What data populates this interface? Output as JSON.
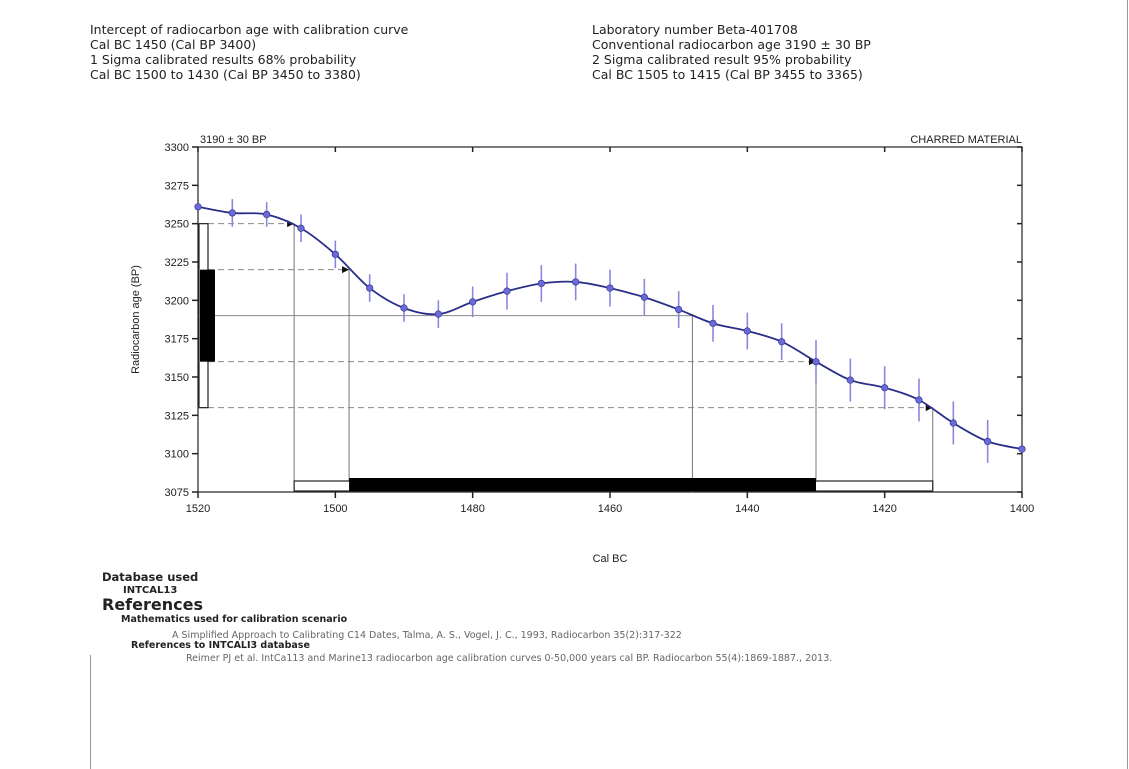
{
  "header": {
    "left": [
      "Intercept of radiocarbon age with calibration curve",
      "Cal BC 1450 (Cal BP 3400)",
      "1 Sigma calibrated results 68% probability",
      "Cal BC 1500 to 1430 (Cal BP 3450 to 3380)"
    ],
    "right": [
      "Laboratory number Beta-401708",
      "Conventional radiocarbon age 3190 ± 30 BP",
      "2 Sigma calibrated result 95% probability",
      "Cal BC 1505 to 1415 (Cal BP 3455 to 3365)"
    ]
  },
  "chart_data": {
    "type": "line",
    "top_left_label": "3190 ± 30 BP",
    "top_right_label": "CHARRED MATERIAL",
    "xlabel": "Cal BC",
    "ylabel": "Radiocarbon age (BP)",
    "xlim": [
      1520,
      1400
    ],
    "ylim": [
      3075,
      3300
    ],
    "xticks": [
      1520,
      1500,
      1480,
      1460,
      1440,
      1420,
      1400
    ],
    "yticks": [
      3075,
      3100,
      3125,
      3150,
      3175,
      3200,
      3225,
      3250,
      3275,
      3300
    ],
    "conventional_age": 3190,
    "sigma1_age_range": [
      3160,
      3220
    ],
    "sigma2_age_range": [
      3130,
      3250
    ],
    "sigma1_cal_range": [
      1498,
      1430
    ],
    "sigma2_cal_range": [
      1506,
      1413
    ],
    "intercept_cal": 1448,
    "series": [
      {
        "points": [
          {
            "x": 1520,
            "y": 3261,
            "err": 0
          },
          {
            "x": 1515,
            "y": 3257,
            "err": 9
          },
          {
            "x": 1510,
            "y": 3256,
            "err": 8
          },
          {
            "x": 1505,
            "y": 3247,
            "err": 9
          },
          {
            "x": 1500,
            "y": 3230,
            "err": 9
          },
          {
            "x": 1495,
            "y": 3208,
            "err": 9
          },
          {
            "x": 1490,
            "y": 3195,
            "err": 9
          },
          {
            "x": 1485,
            "y": 3191,
            "err": 9
          },
          {
            "x": 1480,
            "y": 3199,
            "err": 10
          },
          {
            "x": 1475,
            "y": 3206,
            "err": 12
          },
          {
            "x": 1470,
            "y": 3211,
            "err": 12
          },
          {
            "x": 1465,
            "y": 3212,
            "err": 12
          },
          {
            "x": 1460,
            "y": 3208,
            "err": 12
          },
          {
            "x": 1455,
            "y": 3202,
            "err": 12
          },
          {
            "x": 1450,
            "y": 3194,
            "err": 12
          },
          {
            "x": 1445,
            "y": 3185,
            "err": 12
          },
          {
            "x": 1440,
            "y": 3180,
            "err": 12
          },
          {
            "x": 1435,
            "y": 3173,
            "err": 12
          },
          {
            "x": 1430,
            "y": 3160,
            "err": 14
          },
          {
            "x": 1425,
            "y": 3148,
            "err": 14
          },
          {
            "x": 1420,
            "y": 3143,
            "err": 14
          },
          {
            "x": 1415,
            "y": 3135,
            "err": 14
          },
          {
            "x": 1410,
            "y": 3120,
            "err": 14
          },
          {
            "x": 1405,
            "y": 3108,
            "err": 14
          },
          {
            "x": 1400,
            "y": 3103,
            "err": 0
          }
        ]
      }
    ]
  },
  "database": {
    "heading": "Database used",
    "value": "INTCAL13"
  },
  "references": {
    "heading": "References",
    "math_heading": "Mathematics used for calibration scenario",
    "math_text": "A Simplified Approach to Calibrating C14 Dates, Talma, A. S., Vogel, J. C., 1993, Radiocarbon 35(2):317-322",
    "intcal_heading": "References to INTCALI3 database",
    "intcal_text": "Reimer PJ et al. IntCa113 and Marine13 radiocarbon age calibration curves 0-50,000 years cal BP. Radiocarbon 55(4):1869-1887., 2013."
  },
  "colors": {
    "curve": "#2a2f8a",
    "points": "#6a6ad8",
    "error_bars": "#8888e0",
    "guides": "#8a8a8a"
  }
}
